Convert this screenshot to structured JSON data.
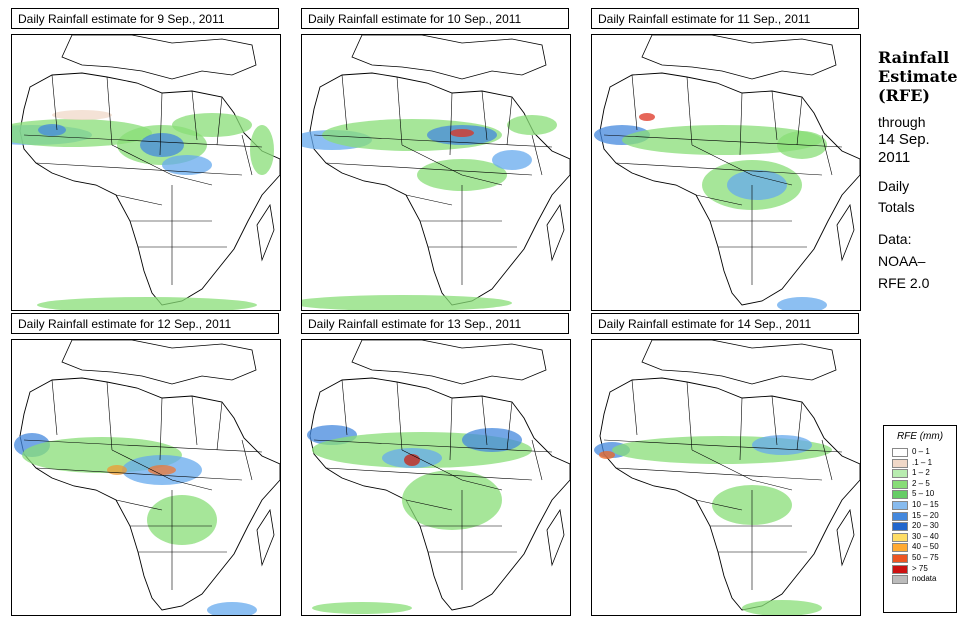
{
  "panels": [
    {
      "title": "Daily Rainfall estimate for  9 Sep., 2011",
      "rain": [
        {
          "x": 20,
          "y": 100,
          "rx": 60,
          "ry": 10,
          "c": "#66aaee"
        },
        {
          "x": 60,
          "y": 98,
          "rx": 80,
          "ry": 14,
          "c": "#88dd77"
        },
        {
          "x": 150,
          "y": 110,
          "rx": 45,
          "ry": 20,
          "c": "#88dd77"
        },
        {
          "x": 150,
          "y": 110,
          "rx": 22,
          "ry": 12,
          "c": "#4488dd"
        },
        {
          "x": 175,
          "y": 130,
          "rx": 25,
          "ry": 10,
          "c": "#66aaee"
        },
        {
          "x": 200,
          "y": 90,
          "rx": 40,
          "ry": 12,
          "c": "#88dd77"
        },
        {
          "x": 250,
          "y": 115,
          "rx": 12,
          "ry": 25,
          "c": "#88dd77"
        },
        {
          "x": 40,
          "y": 95,
          "rx": 14,
          "ry": 6,
          "c": "#4488dd"
        },
        {
          "x": 135,
          "y": 270,
          "rx": 110,
          "ry": 8,
          "c": "#88dd77"
        },
        {
          "x": 70,
          "y": 80,
          "rx": 30,
          "ry": 5,
          "c": "#f0d8c8"
        }
      ]
    },
    {
      "title": "Daily Rainfall estimate for  10 Sep., 2011",
      "rain": [
        {
          "x": 30,
          "y": 105,
          "rx": 40,
          "ry": 10,
          "c": "#66aaee"
        },
        {
          "x": 110,
          "y": 100,
          "rx": 90,
          "ry": 16,
          "c": "#88dd77"
        },
        {
          "x": 160,
          "y": 100,
          "rx": 35,
          "ry": 10,
          "c": "#4488dd"
        },
        {
          "x": 160,
          "y": 98,
          "rx": 12,
          "ry": 4,
          "c": "#dd3322"
        },
        {
          "x": 160,
          "y": 140,
          "rx": 45,
          "ry": 16,
          "c": "#88dd77"
        },
        {
          "x": 210,
          "y": 125,
          "rx": 20,
          "ry": 10,
          "c": "#66aaee"
        },
        {
          "x": 100,
          "y": 268,
          "rx": 110,
          "ry": 8,
          "c": "#88dd77"
        },
        {
          "x": 230,
          "y": 90,
          "rx": 25,
          "ry": 10,
          "c": "#88dd77"
        }
      ]
    },
    {
      "title": "Daily Rainfall estimate for  11 Sep., 2011",
      "rain": [
        {
          "x": 30,
          "y": 100,
          "rx": 28,
          "ry": 10,
          "c": "#4488dd"
        },
        {
          "x": 130,
          "y": 105,
          "rx": 100,
          "ry": 15,
          "c": "#88dd77"
        },
        {
          "x": 160,
          "y": 150,
          "rx": 50,
          "ry": 25,
          "c": "#88dd77"
        },
        {
          "x": 165,
          "y": 150,
          "rx": 30,
          "ry": 15,
          "c": "#66aaee"
        },
        {
          "x": 55,
          "y": 82,
          "rx": 8,
          "ry": 4,
          "c": "#dd3322"
        },
        {
          "x": 210,
          "y": 110,
          "rx": 25,
          "ry": 14,
          "c": "#88dd77"
        },
        {
          "x": 210,
          "y": 270,
          "rx": 25,
          "ry": 8,
          "c": "#66aaee"
        }
      ]
    },
    {
      "title": "Daily Rainfall estimate for  12 Sep., 2011",
      "rain": [
        {
          "x": 20,
          "y": 105,
          "rx": 18,
          "ry": 12,
          "c": "#4488dd"
        },
        {
          "x": 90,
          "y": 115,
          "rx": 80,
          "ry": 18,
          "c": "#88dd77"
        },
        {
          "x": 150,
          "y": 130,
          "rx": 40,
          "ry": 15,
          "c": "#66aaee"
        },
        {
          "x": 150,
          "y": 130,
          "rx": 14,
          "ry": 5,
          "c": "#ee7733"
        },
        {
          "x": 170,
          "y": 180,
          "rx": 35,
          "ry": 25,
          "c": "#88dd77"
        },
        {
          "x": 105,
          "y": 130,
          "rx": 10,
          "ry": 5,
          "c": "#ee9933"
        },
        {
          "x": 220,
          "y": 270,
          "rx": 25,
          "ry": 8,
          "c": "#66aaee"
        }
      ]
    },
    {
      "title": "Daily Rainfall estimate for  13 Sep., 2011",
      "rain": [
        {
          "x": 30,
          "y": 95,
          "rx": 25,
          "ry": 10,
          "c": "#4488dd"
        },
        {
          "x": 120,
          "y": 110,
          "rx": 110,
          "ry": 18,
          "c": "#88dd77"
        },
        {
          "x": 110,
          "y": 118,
          "rx": 30,
          "ry": 10,
          "c": "#66aaee"
        },
        {
          "x": 110,
          "y": 120,
          "rx": 8,
          "ry": 6,
          "c": "#cc2211"
        },
        {
          "x": 150,
          "y": 160,
          "rx": 50,
          "ry": 30,
          "c": "#88dd77"
        },
        {
          "x": 190,
          "y": 100,
          "rx": 30,
          "ry": 12,
          "c": "#4488dd"
        },
        {
          "x": 60,
          "y": 268,
          "rx": 50,
          "ry": 6,
          "c": "#88dd77"
        }
      ]
    },
    {
      "title": "Daily Rainfall estimate for  14 Sep., 2011",
      "rain": [
        {
          "x": 20,
          "y": 110,
          "rx": 18,
          "ry": 8,
          "c": "#4488dd"
        },
        {
          "x": 15,
          "y": 115,
          "rx": 8,
          "ry": 4,
          "c": "#ee6622"
        },
        {
          "x": 130,
          "y": 110,
          "rx": 110,
          "ry": 14,
          "c": "#88dd77"
        },
        {
          "x": 190,
          "y": 105,
          "rx": 30,
          "ry": 10,
          "c": "#66aaee"
        },
        {
          "x": 160,
          "y": 165,
          "rx": 40,
          "ry": 20,
          "c": "#88dd77"
        },
        {
          "x": 190,
          "y": 268,
          "rx": 40,
          "ry": 8,
          "c": "#88dd77"
        }
      ]
    }
  ],
  "side": {
    "title_lines": [
      "Rainfall",
      "Estimate",
      "(RFE)"
    ],
    "through_label": "through",
    "date_lines": [
      "14 Sep.",
      "2011"
    ],
    "daily_lines": [
      "Daily",
      "Totals"
    ],
    "data_lines": [
      "Data:",
      "NOAA–",
      "RFE 2.0"
    ]
  },
  "legend": {
    "title": "RFE (mm)",
    "items": [
      {
        "label": "0 – 1",
        "color": "#ffffff"
      },
      {
        "label": ".1 – 1",
        "color": "#f0d8c8"
      },
      {
        "label": "1 – 2",
        "color": "#b8ecb0"
      },
      {
        "label": "2 – 5",
        "color": "#88dd77"
      },
      {
        "label": "5 – 10",
        "color": "#66cc66"
      },
      {
        "label": "10 – 15",
        "color": "#88bbee"
      },
      {
        "label": "15 – 20",
        "color": "#4488dd"
      },
      {
        "label": "20 – 30",
        "color": "#2266cc"
      },
      {
        "label": "30 – 40",
        "color": "#ffdd66"
      },
      {
        "label": "40 – 50",
        "color": "#ffaa33"
      },
      {
        "label": "50 – 75",
        "color": "#ee5522"
      },
      {
        "label": "> 75",
        "color": "#cc1111"
      },
      {
        "label": "nodata",
        "color": "#bbbbbb"
      }
    ]
  }
}
